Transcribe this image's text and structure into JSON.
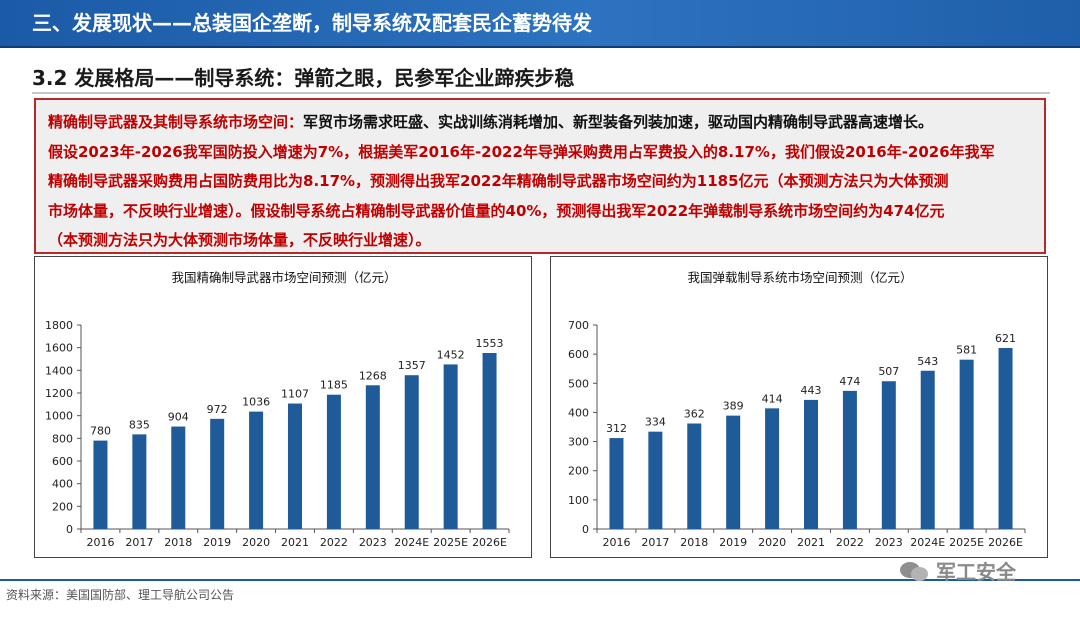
{
  "header": {
    "title": "三、发展现状——总装国企垄断，制导系统及配套民企蓄势待发"
  },
  "section": {
    "title": "3.2 发展格局——制导系统：弹箭之眼，民参军企业蹄疾步稳"
  },
  "text_box": {
    "lead_red": "精确制导武器及其制导系统市场空间：",
    "lead_black": "军贸市场需求旺盛、实战训练消耗增加、新型装备列装加速，驱动国内精确制导武器高速增长。",
    "line2": "假设2023年-2026我军国防投入增速为7%，根据美军2016年-2022年导弹采购费用占军费投入的8.17%，我们假设2016年-2026年我军",
    "line3": "精确制导武器采购费用占国防费用比为8.17%，预测得出我军2022年精确制导武器市场空间约为1185亿元（本预测方法只为大体预测",
    "line4": "市场体量，不反映行业增速）。假设制导系统占精确制导武器价值量的40%，预测得出我军2022年弹载制导系统市场空间约为474亿元",
    "line5": "（本预测方法只为大体预测市场体量，不反映行业增速）。"
  },
  "chart_data": [
    {
      "type": "bar",
      "title": "我国精确制导武器市场空间预测（亿元）",
      "categories": [
        "2016",
        "2017",
        "2018",
        "2019",
        "2020",
        "2021",
        "2022",
        "2023",
        "2024E",
        "2025E",
        "2026E"
      ],
      "values": [
        780,
        835,
        904,
        972,
        1036,
        1107,
        1185,
        1268,
        1357,
        1452,
        1553
      ],
      "ylim": [
        0,
        1800
      ],
      "yticks": [
        0,
        200,
        400,
        600,
        800,
        1000,
        1200,
        1400,
        1600,
        1800
      ],
      "grid": false,
      "color": "#1f5b99"
    },
    {
      "type": "bar",
      "title": "我国弹载制导系统市场空间预测（亿元）",
      "categories": [
        "2016",
        "2017",
        "2018",
        "2019",
        "2020",
        "2021",
        "2022",
        "2023",
        "2024E",
        "2025E",
        "2026E"
      ],
      "values": [
        312,
        334,
        362,
        389,
        414,
        443,
        474,
        507,
        543,
        581,
        621
      ],
      "ylim": [
        0,
        700
      ],
      "yticks": [
        0,
        100,
        200,
        300,
        400,
        500,
        600,
        700
      ],
      "grid": false,
      "color": "#1f5b99"
    }
  ],
  "footer": {
    "source": "资料来源：美国国防部、理工导航公司公告",
    "watermark": "军工安全"
  }
}
